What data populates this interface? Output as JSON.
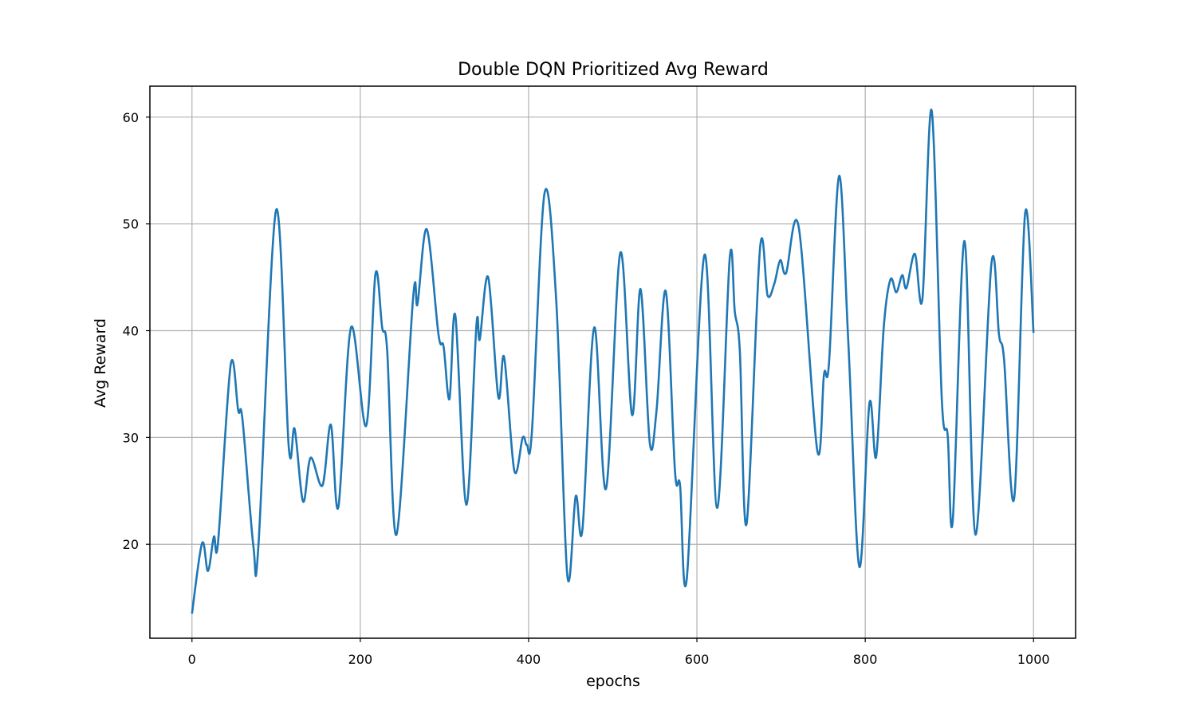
{
  "chart_data": {
    "type": "line",
    "title": "Double DQN Prioritized Avg Reward",
    "xlabel": "epochs",
    "ylabel": "Avg Reward",
    "x": [
      0,
      12,
      19,
      26,
      31,
      46,
      55,
      60,
      73,
      79,
      100,
      115,
      122,
      132,
      141,
      155,
      165,
      174,
      189,
      207,
      218,
      226,
      232,
      243,
      263,
      268,
      279,
      293,
      299,
      306,
      313,
      326,
      338,
      342,
      352,
      364,
      371,
      383,
      393,
      398,
      404,
      419,
      433,
      446,
      456,
      464,
      478,
      492,
      509,
      523,
      533,
      544,
      552,
      563,
      574,
      580,
      588,
      609,
      624,
      639,
      645,
      651,
      659,
      675,
      684,
      692,
      699,
      706,
      721,
      743,
      751,
      757,
      769,
      780,
      793,
      805,
      813,
      822,
      830,
      837,
      844,
      849,
      859,
      868,
      879,
      891,
      898,
      904,
      918,
      931,
      950,
      959,
      965,
      977,
      990,
      1000
    ],
    "series": [
      {
        "name": "Avg Reward",
        "color": "#1f77b4",
        "values": [
          13.5,
          20.1,
          17.5,
          20.7,
          20.2,
          36.8,
          32.5,
          31.7,
          19.8,
          19.9,
          51.3,
          29.1,
          30.8,
          24.0,
          28.1,
          25.5,
          31.2,
          23.5,
          40.3,
          31.1,
          45.3,
          40.3,
          38.1,
          20.9,
          43.3,
          42.5,
          49.5,
          39.6,
          38.5,
          33.6,
          41.4,
          23.7,
          40.5,
          39.2,
          45.0,
          33.8,
          37.5,
          26.9,
          30.0,
          29.3,
          30.6,
          52.9,
          42.6,
          17.1,
          24.5,
          21.4,
          40.3,
          25.2,
          47.3,
          32.1,
          43.9,
          29.5,
          32.5,
          43.7,
          26.8,
          25.5,
          16.8,
          47.1,
          23.4,
          46.8,
          41.8,
          38.1,
          21.9,
          47.7,
          43.3,
          44.4,
          46.6,
          45.4,
          49.7,
          28.8,
          35.9,
          37.0,
          54.5,
          38.8,
          17.9,
          33.2,
          28.2,
          40.3,
          44.8,
          43.6,
          45.2,
          44.0,
          47.2,
          43.0,
          60.6,
          33.6,
          30.2,
          22.2,
          48.4,
          20.9,
          46.3,
          39.6,
          37.3,
          24.3,
          51.0,
          39.8
        ]
      }
    ],
    "xlim": [
      -50,
      1050
    ],
    "ylim": [
      11.2,
      62.9
    ],
    "xticks": [
      0,
      200,
      400,
      600,
      800,
      1000
    ],
    "yticks": [
      20,
      30,
      40,
      50,
      60
    ],
    "grid": true
  }
}
